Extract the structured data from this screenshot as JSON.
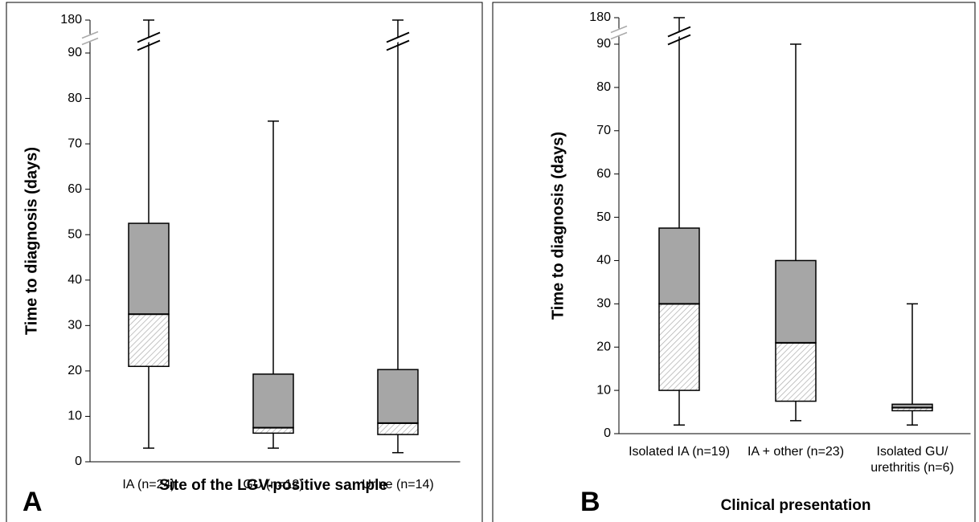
{
  "chart_data": [
    {
      "type": "box",
      "panel_label": "A",
      "xlabel": "Site of the LGV-positive sample",
      "ylabel": "Time to diagnosis (days)",
      "categories": [
        "IA (n=24)",
        "GU (n=12)",
        "Urine (n=14)"
      ],
      "min": [
        3,
        3,
        2
      ],
      "q1": [
        21,
        6.3,
        6
      ],
      "median": [
        32.5,
        7.5,
        8.5
      ],
      "q3": [
        52.5,
        19.3,
        20.3
      ],
      "max": [
        180,
        75,
        180
      ],
      "color": "#a6a6a6",
      "ylim": [
        0,
        180
      ],
      "yticks": [
        0,
        10,
        20,
        30,
        40,
        50,
        60,
        70,
        80,
        90,
        180
      ],
      "y_break": true
    },
    {
      "type": "box",
      "panel_label": "B",
      "xlabel": "Clinical presentation",
      "ylabel": "Time to diagnosis (days)",
      "categories": [
        "Isolated IA (n=19)",
        "IA + other (n=23)",
        "Isolated GU/ urethritis (n=6)"
      ],
      "min": [
        2,
        3,
        2
      ],
      "q1": [
        10,
        7.5,
        5.3
      ],
      "median": [
        30,
        21,
        6
      ],
      "q3": [
        47.5,
        40,
        6.8
      ],
      "max": [
        180,
        90,
        30
      ],
      "color": "#a6a6a6",
      "ylim": [
        0,
        180
      ],
      "yticks": [
        0,
        10,
        20,
        30,
        40,
        50,
        60,
        70,
        80,
        90,
        180
      ],
      "y_break": true
    }
  ]
}
